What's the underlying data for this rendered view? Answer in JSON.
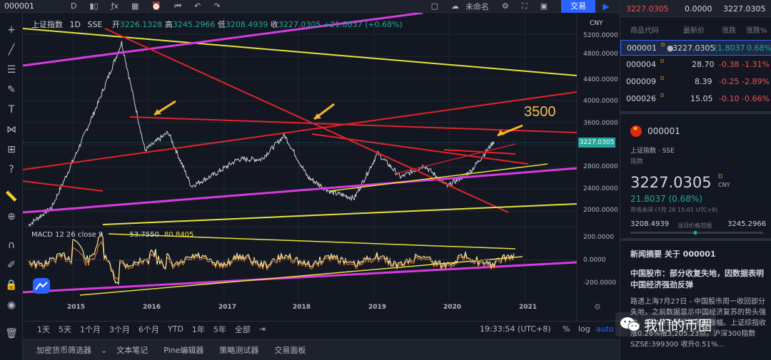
{
  "topbar": {
    "symbol": "000001",
    "items": [
      "D",
      "ƒx",
      "未命名"
    ],
    "trade_button": "交易"
  },
  "quote_strip": {
    "bid": "3227.0305",
    "mid": "0.0000",
    "ask": "3227.0305"
  },
  "chart": {
    "legend": {
      "title": "上证指数",
      "interval": "1D",
      "exchange": "SSE",
      "open_label": "开",
      "open": "3226.1328",
      "high_label": "高",
      "high": "3245.2966",
      "low_label": "低",
      "low": "3208.4939",
      "close_label": "收",
      "close": "3227.0305",
      "change": "+21.8037 (+0.68%)"
    },
    "currency": "CNY",
    "last_price_label": "3227.0305",
    "annotation": "3500",
    "price_ticks": [
      "5200.0000",
      "4800.0000",
      "4400.0000",
      "4000.0000",
      "3600.0000",
      "3200.0000",
      "2800.0000",
      "2400.0000",
      "2000.0000"
    ],
    "macd_ticks": [
      "200.0000",
      "0.0000",
      "-200.0000"
    ],
    "x_ticks": [
      "2015",
      "2016",
      "2017",
      "2018",
      "2019",
      "2020",
      "2021"
    ],
    "macd_legend": {
      "name": "MACD 12 26 close 9",
      "v1": "53.7550",
      "v2": "80.8405"
    },
    "colors": {
      "yellow": "#e8e23a",
      "magenta": "#d63be0",
      "red": "#e0242a",
      "arrow": "#f2b82a",
      "price": "#d1d4dc"
    }
  },
  "chart_data": {
    "type": "line",
    "title": "上证指数",
    "xlabel": "",
    "ylabel": "",
    "x": [
      "2014-07",
      "2014-10",
      "2015-01",
      "2015-04",
      "2015-06",
      "2015-08",
      "2015-11",
      "2016-01",
      "2016-06",
      "2017-01",
      "2017-06",
      "2018-01",
      "2018-06",
      "2018-10",
      "2019-01",
      "2019-04",
      "2019-08",
      "2020-01",
      "2020-03",
      "2020-06",
      "2020-07"
    ],
    "series": [
      {
        "name": "上证指数",
        "values": [
          2050,
          2350,
          3200,
          4100,
          5100,
          3300,
          3600,
          2700,
          2900,
          3150,
          3150,
          3550,
          2850,
          2600,
          2500,
          3250,
          2850,
          3050,
          2700,
          2950,
          3450
        ]
      }
    ],
    "ylim": [
      1800,
      5400
    ]
  },
  "timeframes": [
    "1天",
    "5天",
    "1个月",
    "3个月",
    "6个月",
    "YTD",
    "1年",
    "5年",
    "全部"
  ],
  "clock": "19:33:54 (UTC+8)",
  "chart_opts": {
    "pct": "%",
    "log": "log",
    "auto": "auto"
  },
  "bottom_tabs": [
    "加密货币筛选器",
    "文本笔记",
    "Pine编辑器",
    "策略测试器",
    "交易面板"
  ],
  "watchlist": {
    "headers": {
      "code": "商品代码",
      "last": "最新价",
      "chg": "涨跌",
      "pct": "涨跌%"
    },
    "rows": [
      {
        "code": "000001",
        "flag": "D",
        "last": "3227.0305",
        "chg": "21.8037",
        "pct": "0.68%",
        "dir": "up"
      },
      {
        "code": "000004",
        "flag": "D",
        "last": "28.70",
        "chg": "-0.38",
        "pct": "-1.31%",
        "dir": "down"
      },
      {
        "code": "000009",
        "flag": "D",
        "last": "8.39",
        "chg": "-0.25",
        "pct": "-2.89%",
        "dir": "down"
      },
      {
        "code": "000026",
        "flag": "D",
        "last": "15.05",
        "chg": "-0.10",
        "pct": "-0.66%",
        "dir": "down"
      }
    ]
  },
  "detail": {
    "code": "000001",
    "name": "上证指数 · SSE",
    "type": "指数",
    "price": "3227.0305",
    "sup": "D",
    "currency": "CNY",
    "change": "21.8037 (0.68%)",
    "status": "市场关闭 (7月 28 15:01 UTC+8)",
    "low": "3208.4939",
    "high": "3245.2966",
    "range_label": "当日价格范围",
    "range_fraction": 0.49
  },
  "news": {
    "header": "新闻摘要 关于 000001",
    "title": "中国股市：部分收复失地，因数据表明中国经济强劲反弹",
    "body": "路透上海7月27日 - 中国股市周一收回部分失地，之前数据显示中国经济复苏的势头强劲，但中美关系紧张限制涨幅。上证综指收涨0.26%报3,205.23点。沪深300指数SZSE:399300 收升0.51%..."
  },
  "watermark": {
    "text": "我们的币圈"
  }
}
